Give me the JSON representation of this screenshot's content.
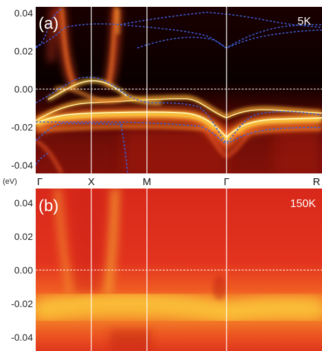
{
  "panels": [
    {
      "label": "(a)",
      "temperature": "5K",
      "y_ticks": [
        "0.04",
        "0.02",
        "0.00",
        "-0.02",
        "-0.04"
      ],
      "y_values": [
        0.04,
        0.02,
        0.0,
        -0.02,
        -0.04
      ]
    },
    {
      "label": "(b)",
      "temperature": "150K",
      "y_ticks": [
        "0.04",
        "0.02",
        "0.00",
        "-0.02",
        "-0.04"
      ],
      "y_values": [
        0.04,
        0.02,
        0.0,
        -0.02,
        -0.04
      ]
    }
  ],
  "y_unit": "(eV)",
  "k_points": [
    "Γ",
    "X",
    "M",
    "Γ",
    "R"
  ],
  "colors": {
    "dark": "#100000",
    "red": "#e0301e",
    "yellow": "#ffe040",
    "band_dashed": "#3c5cd6",
    "symmetry_lines": "#ffffff",
    "fermi_level": "#ffffff"
  }
}
